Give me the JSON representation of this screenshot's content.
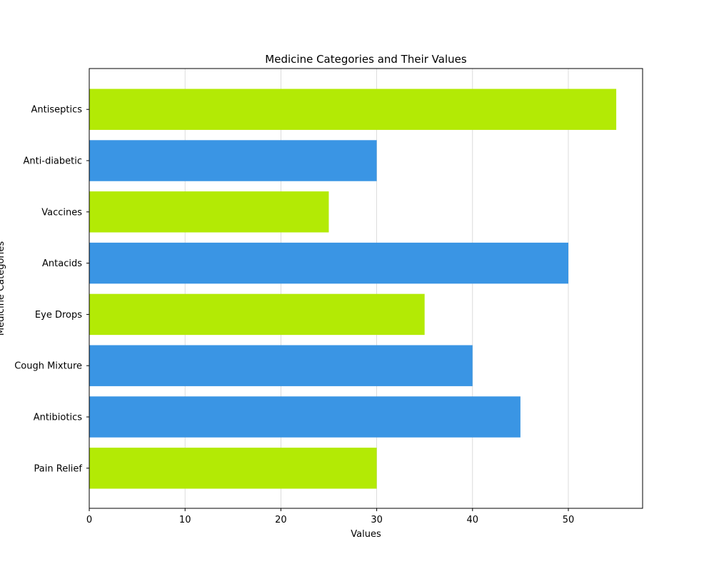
{
  "chart_data": {
    "type": "bar",
    "orientation": "horizontal",
    "title": "Medicine Categories and Their Values",
    "xlabel": "Values",
    "ylabel": "Medicine Categories",
    "categories": [
      "Pain Relief",
      "Antibiotics",
      "Cough Mixture",
      "Eye Drops",
      "Antacids",
      "Vaccines",
      "Anti-diabetic",
      "Antiseptics"
    ],
    "values": [
      30,
      45,
      40,
      35,
      50,
      25,
      30,
      55
    ],
    "bar_colors": [
      "#b3ea05",
      "#3a95e4",
      "#3a95e4",
      "#b3ea05",
      "#3a95e4",
      "#b3ea05",
      "#3a95e4",
      "#b3ea05"
    ],
    "xlim": [
      0,
      57.75
    ],
    "xticks": [
      0,
      10,
      20,
      30,
      40,
      50
    ],
    "grid": {
      "x": true,
      "y": false,
      "color": "#d3d3d3"
    },
    "legend": null
  }
}
